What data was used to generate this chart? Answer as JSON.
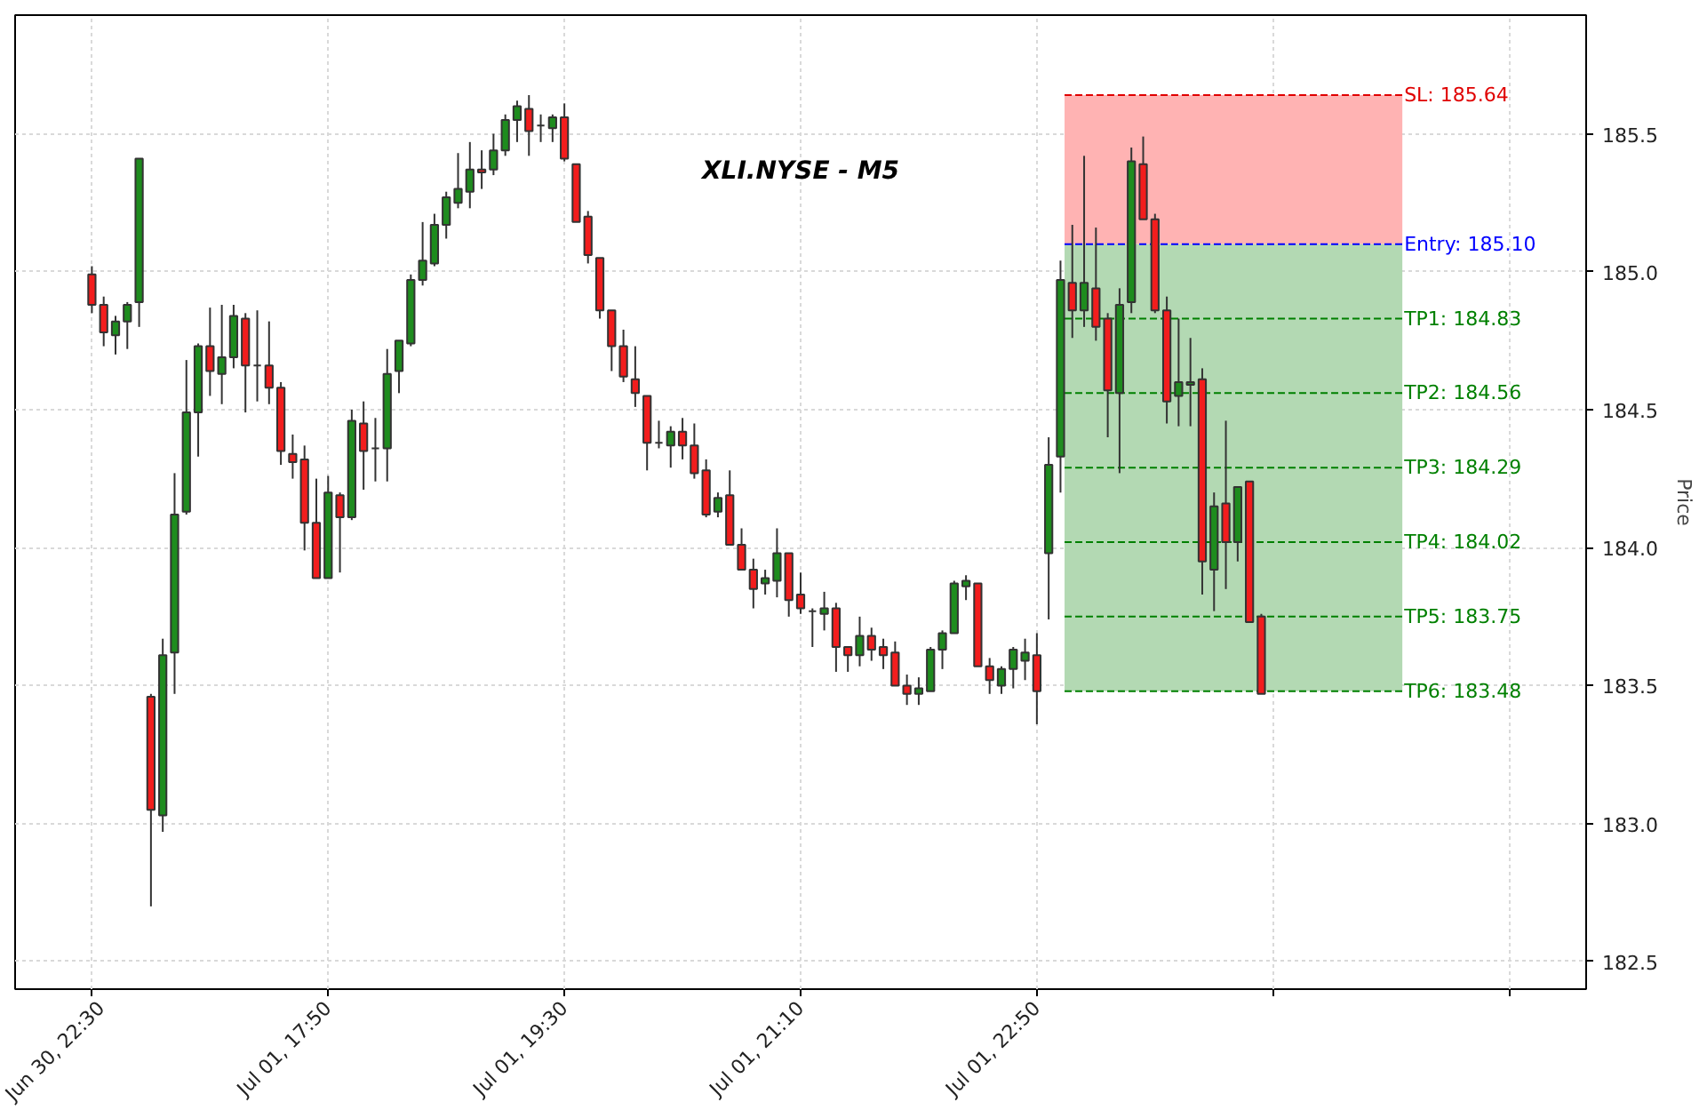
{
  "chart_data": {
    "type": "candlestick",
    "title": "XLI.NYSE - M5",
    "ylabel": "Price",
    "categories": [
      null,
      null,
      null,
      null,
      null,
      null,
      "Jun 30, 22:30",
      null,
      null,
      null,
      null,
      null,
      null,
      null,
      null,
      null,
      null,
      null,
      null,
      null,
      null,
      null,
      null,
      null,
      null,
      null,
      "Jul 01, 17:50",
      null,
      null,
      null,
      null,
      null,
      null,
      null,
      null,
      null,
      null,
      null,
      null,
      null,
      null,
      null,
      null,
      null,
      null,
      null,
      "Jul 01, 19:30",
      null,
      null,
      null,
      null,
      null,
      null,
      null,
      null,
      null,
      null,
      null,
      null,
      null,
      null,
      null,
      null,
      null,
      null,
      null,
      "Jul 01, 21:10",
      null,
      null,
      null,
      null,
      null,
      null,
      null,
      null,
      null,
      null,
      null,
      null,
      null,
      null,
      null,
      null,
      null,
      null,
      null,
      "Jul 01, 22:50",
      null,
      null,
      null,
      null,
      null,
      null,
      null,
      null,
      null,
      null,
      null,
      null,
      null,
      null,
      null,
      null,
      null,
      null,
      null,
      null,
      null,
      null,
      null,
      null,
      null,
      null,
      null,
      null,
      null,
      null,
      null,
      null,
      null,
      null,
      null,
      null,
      null,
      null,
      null,
      null,
      null,
      null,
      null,
      null,
      null,
      null
    ],
    "ohlc": [
      null,
      null,
      null,
      null,
      null,
      null,
      [
        184.99,
        185.02,
        184.85,
        184.88
      ],
      [
        184.88,
        184.91,
        184.73,
        184.78
      ],
      [
        184.77,
        184.84,
        184.7,
        184.82
      ],
      [
        184.82,
        184.89,
        184.72,
        184.88
      ],
      [
        184.89,
        185.41,
        184.8,
        185.41
      ],
      [
        183.46,
        183.47,
        182.7,
        183.05
      ],
      [
        183.03,
        183.67,
        182.97,
        183.61
      ],
      [
        183.62,
        184.27,
        183.47,
        184.12
      ],
      [
        184.13,
        184.68,
        184.12,
        184.49
      ],
      [
        184.49,
        184.74,
        184.33,
        184.73
      ],
      [
        184.73,
        184.87,
        184.55,
        184.64
      ],
      [
        184.63,
        184.88,
        184.52,
        184.69
      ],
      [
        184.69,
        184.88,
        184.65,
        184.84
      ],
      [
        184.83,
        184.85,
        184.49,
        184.66
      ],
      [
        184.66,
        184.86,
        184.53,
        184.66
      ],
      [
        184.66,
        184.82,
        184.52,
        184.58
      ],
      [
        184.58,
        184.6,
        184.3,
        184.35
      ],
      [
        184.34,
        184.41,
        184.25,
        184.31
      ],
      [
        184.32,
        184.37,
        183.99,
        184.09
      ],
      [
        184.09,
        184.25,
        183.89,
        183.89
      ],
      [
        183.89,
        184.26,
        183.89,
        184.2
      ],
      [
        184.19,
        184.2,
        183.91,
        184.11
      ],
      [
        184.11,
        184.5,
        184.1,
        184.46
      ],
      [
        184.45,
        184.53,
        184.21,
        184.35
      ],
      [
        184.36,
        184.47,
        184.24,
        184.36
      ],
      [
        184.36,
        184.72,
        184.24,
        184.63
      ],
      [
        184.64,
        184.75,
        184.56,
        184.75
      ],
      [
        184.74,
        184.99,
        184.73,
        184.97
      ],
      [
        184.97,
        185.18,
        184.95,
        185.04
      ],
      [
        185.03,
        185.21,
        185.02,
        185.17
      ],
      [
        185.17,
        185.29,
        185.12,
        185.27
      ],
      [
        185.25,
        185.43,
        185.23,
        185.3
      ],
      [
        185.29,
        185.47,
        185.23,
        185.37
      ],
      [
        185.37,
        185.44,
        185.3,
        185.36
      ],
      [
        185.37,
        185.5,
        185.35,
        185.44
      ],
      [
        185.44,
        185.57,
        185.42,
        185.55
      ],
      [
        185.55,
        185.62,
        185.47,
        185.6
      ],
      [
        185.59,
        185.64,
        185.42,
        185.51
      ],
      [
        185.53,
        185.57,
        185.47,
        185.53
      ],
      [
        185.52,
        185.57,
        185.47,
        185.56
      ],
      [
        185.56,
        185.61,
        185.4,
        185.41
      ],
      [
        185.39,
        185.39,
        185.18,
        185.18
      ],
      [
        185.2,
        185.22,
        185.03,
        185.06
      ],
      [
        185.05,
        185.05,
        184.83,
        184.86
      ],
      [
        184.86,
        184.86,
        184.64,
        184.73
      ],
      [
        184.73,
        184.79,
        184.6,
        184.62
      ],
      [
        184.61,
        184.73,
        184.51,
        184.56
      ],
      [
        184.55,
        184.55,
        184.28,
        184.38
      ],
      [
        184.38,
        184.46,
        184.36,
        184.38
      ],
      [
        184.37,
        184.44,
        184.29,
        184.42
      ],
      [
        184.42,
        184.47,
        184.32,
        184.37
      ],
      [
        184.37,
        184.45,
        184.25,
        184.27
      ],
      [
        184.28,
        184.32,
        184.11,
        184.12
      ],
      [
        184.13,
        184.2,
        184.11,
        184.18
      ],
      [
        184.19,
        184.28,
        184.01,
        184.01
      ],
      [
        184.01,
        184.07,
        183.92,
        183.92
      ],
      [
        183.92,
        183.96,
        183.78,
        183.85
      ],
      [
        183.87,
        183.92,
        183.83,
        183.89
      ],
      [
        183.88,
        184.07,
        183.82,
        183.98
      ],
      [
        183.98,
        183.98,
        183.75,
        183.81
      ],
      [
        183.83,
        183.91,
        183.76,
        183.78
      ],
      [
        183.77,
        183.78,
        183.64,
        183.77
      ],
      [
        183.76,
        183.84,
        183.7,
        183.78
      ],
      [
        183.78,
        183.8,
        183.55,
        183.64
      ],
      [
        183.64,
        183.64,
        183.55,
        183.61
      ],
      [
        183.61,
        183.75,
        183.57,
        183.68
      ],
      [
        183.68,
        183.71,
        183.59,
        183.63
      ],
      [
        183.64,
        183.67,
        183.56,
        183.61
      ],
      [
        183.62,
        183.66,
        183.5,
        183.5
      ],
      [
        183.5,
        183.54,
        183.43,
        183.47
      ],
      [
        183.47,
        183.53,
        183.43,
        183.49
      ],
      [
        183.48,
        183.64,
        183.48,
        183.63
      ],
      [
        183.63,
        183.7,
        183.56,
        183.69
      ],
      [
        183.69,
        183.88,
        183.69,
        183.87
      ],
      [
        183.86,
        183.9,
        183.81,
        183.88
      ],
      [
        183.87,
        183.87,
        183.57,
        183.57
      ],
      [
        183.57,
        183.6,
        183.47,
        183.52
      ],
      [
        183.5,
        183.57,
        183.47,
        183.56
      ],
      [
        183.56,
        183.64,
        183.49,
        183.63
      ],
      [
        183.59,
        183.67,
        183.52,
        183.62
      ],
      [
        183.61,
        183.69,
        183.36,
        183.48
      ],
      [
        183.98,
        184.4,
        183.74,
        184.3
      ],
      [
        184.33,
        185.04,
        184.2,
        184.97
      ],
      [
        184.96,
        185.17,
        184.76,
        184.86
      ],
      [
        184.86,
        185.42,
        184.8,
        184.96
      ],
      [
        184.94,
        185.16,
        184.75,
        184.8
      ],
      [
        184.83,
        184.85,
        184.4,
        184.57
      ],
      [
        184.56,
        184.94,
        184.27,
        184.88
      ],
      [
        184.89,
        185.45,
        184.85,
        185.4
      ],
      [
        185.39,
        185.49,
        185.19,
        185.19
      ],
      [
        185.19,
        185.21,
        184.85,
        184.86
      ],
      [
        184.86,
        184.91,
        184.45,
        184.53
      ],
      [
        184.55,
        184.83,
        184.44,
        184.6
      ],
      [
        184.59,
        184.76,
        184.44,
        184.6
      ],
      [
        184.61,
        184.65,
        183.83,
        183.95
      ],
      [
        183.92,
        184.2,
        183.77,
        184.15
      ],
      [
        184.16,
        184.46,
        183.85,
        184.02
      ],
      [
        184.02,
        184.22,
        183.95,
        184.22
      ],
      [
        184.24,
        184.24,
        183.73,
        183.73
      ],
      [
        183.75,
        183.76,
        183.47,
        183.47
      ],
      null,
      null,
      null,
      null,
      null,
      null,
      null,
      null,
      null,
      null,
      null,
      null,
      null,
      null,
      null,
      null,
      null,
      null,
      null,
      null,
      null,
      null,
      null,
      null,
      null,
      null,
      null
    ],
    "colors": [
      null,
      null,
      null,
      null,
      null,
      null,
      "#f21d1d",
      "#f21d1d",
      "#1e8c1e",
      "#1e8c1e",
      "#1e8c1e",
      "#f21d1d",
      "#1e8c1e",
      "#1e8c1e",
      "#1e8c1e",
      "#1e8c1e",
      "#f21d1d",
      "#1e8c1e",
      "#1e8c1e",
      "#f21d1d",
      "#333333",
      "#f21d1d",
      "#f21d1d",
      "#f21d1d",
      "#f21d1d",
      "#f21d1d",
      "#1e8c1e",
      "#f21d1d",
      "#1e8c1e",
      "#f21d1d",
      "#333333",
      "#1e8c1e",
      "#1e8c1e",
      "#1e8c1e",
      "#1e8c1e",
      "#1e8c1e",
      "#1e8c1e",
      "#1e8c1e",
      "#1e8c1e",
      "#f21d1d",
      "#1e8c1e",
      "#1e8c1e",
      "#1e8c1e",
      "#f21d1d",
      "#333333",
      "#1e8c1e",
      "#f21d1d",
      "#f21d1d",
      "#f21d1d",
      "#f21d1d",
      "#f21d1d",
      "#f21d1d",
      "#f21d1d",
      "#f21d1d",
      "#333333",
      "#1e8c1e",
      "#f21d1d",
      "#f21d1d",
      "#f21d1d",
      "#1e8c1e",
      "#f21d1d",
      "#f21d1d",
      "#f21d1d",
      "#1e8c1e",
      "#1e8c1e",
      "#f21d1d",
      "#f21d1d",
      "#333333",
      "#1e8c1e",
      "#f21d1d",
      "#f21d1d",
      "#1e8c1e",
      "#f21d1d",
      "#f21d1d",
      "#f21d1d",
      "#f21d1d",
      "#1e8c1e",
      "#1e8c1e",
      "#1e8c1e",
      "#1e8c1e",
      "#1e8c1e",
      "#f21d1d",
      "#f21d1d",
      "#1e8c1e",
      "#1e8c1e",
      "#1e8c1e",
      "#f21d1d",
      "#1e8c1e",
      "#1e8c1e",
      "#f21d1d",
      "#1e8c1e",
      "#f21d1d",
      "#f21d1d",
      "#1e8c1e",
      "#1e8c1e",
      "#f21d1d",
      "#f21d1d",
      "#f21d1d",
      "#1e8c1e",
      "#1e8c1e",
      "#f21d1d",
      "#1e8c1e",
      "#f21d1d",
      "#1e8c1e",
      "#f21d1d",
      "#f21d1d",
      null,
      null,
      null,
      null,
      null,
      null,
      null,
      null,
      null,
      null,
      null,
      null,
      null,
      null,
      null,
      null,
      null,
      null,
      null,
      null,
      null,
      null,
      null,
      null,
      null,
      null,
      null
    ],
    "ylim": [
      182.4,
      185.93
    ],
    "yticks": [
      182.5,
      {
        "value": 183,
        "label": "183.0"
      },
      183.5,
      {
        "value": 184,
        "label": "184.0"
      },
      184.5,
      {
        "value": 185,
        "label": "185.0"
      },
      185.5
    ],
    "bands": [
      {
        "axis": "y",
        "from": 185.1,
        "to": 185.64,
        "color": "#ffb3b3"
      },
      {
        "axis": "y",
        "from": 183.48,
        "to": 185.1,
        "color": "#b3d9b3"
      }
    ],
    "ref_lines": [
      {
        "axis": "y",
        "value": 185.64,
        "label": "SL: 185.64",
        "color": "#e00000",
        "line_style": "dashed"
      },
      {
        "axis": "y",
        "value": 185.1,
        "label": "Entry: 185.10",
        "color": "#0000ff",
        "line_style": "dashed"
      },
      {
        "axis": "y",
        "value": 184.83,
        "label": "TP1: 184.83",
        "color": "#008000",
        "line_style": "dashed"
      },
      {
        "axis": "y",
        "value": 184.56,
        "label": "TP2: 184.56",
        "color": "#008000",
        "line_style": "dashed"
      },
      {
        "axis": "y",
        "value": 184.29,
        "label": "TP3: 184.29",
        "color": "#008000",
        "line_style": "dashed"
      },
      {
        "axis": "y",
        "value": 184.02,
        "label": "TP4: 184.02",
        "color": "#008000",
        "line_style": "dashed"
      },
      {
        "axis": "y",
        "value": 183.75,
        "label": "TP5: 183.75",
        "color": "#008000",
        "line_style": "dashed"
      },
      {
        "axis": "y",
        "value": 183.48,
        "label": "TP6: 183.48",
        "color": "#008000",
        "line_style": "dashed"
      }
    ],
    "grid": true
  }
}
